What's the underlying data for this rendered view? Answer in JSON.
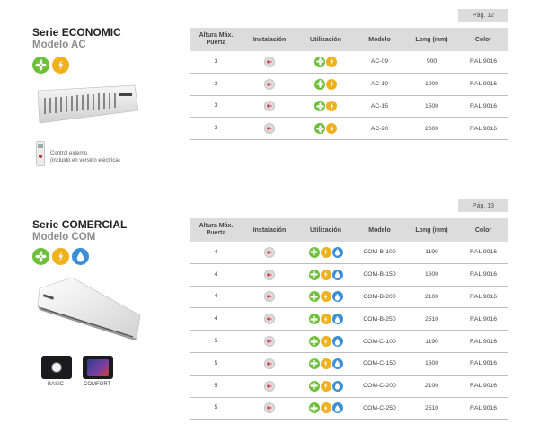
{
  "economic": {
    "page": "Pág. 12",
    "series_label": "Serie ECONOMIC",
    "model_label": "Modelo AC",
    "icons": [
      "fan-icon",
      "heat-icon"
    ],
    "remote_caption_line1": "Control externo",
    "remote_caption_line2": "(incluido en versión eléctrica)",
    "headers": {
      "height_line1": "Altura Máx.",
      "height_line2": "Puerta",
      "install": "Instalación",
      "use": "Utilización",
      "model": "Modelo",
      "length": "Long (mm)",
      "color": "Color"
    },
    "rows": [
      {
        "height": "3",
        "model": "AC-09",
        "length": "900",
        "color": "RAL 9016"
      },
      {
        "height": "3",
        "model": "AC-10",
        "length": "1000",
        "color": "RAL 9016"
      },
      {
        "height": "3",
        "model": "AC-15",
        "length": "1500",
        "color": "RAL 9016"
      },
      {
        "height": "3",
        "model": "AC-20",
        "length": "2000",
        "color": "RAL 9016"
      }
    ]
  },
  "comercial": {
    "page": "Pág. 13",
    "series_label": "Serie COMERCIAL",
    "model_label": "Modelo COM",
    "icons": [
      "fan-icon",
      "heat-icon",
      "water-icon"
    ],
    "controller_basic": "BASIC",
    "controller_comfort": "COMFORT",
    "headers": {
      "height_line1": "Altura Máx.",
      "height_line2": "Puerta",
      "install": "Instalación",
      "use": "Utilización",
      "model": "Modelo",
      "length": "Long (mm)",
      "color": "Color"
    },
    "rows": [
      {
        "height": "4",
        "model": "COM-B-100",
        "length": "1190",
        "color": "RAL 9016"
      },
      {
        "height": "4",
        "model": "COM-B-150",
        "length": "1600",
        "color": "RAL 9016"
      },
      {
        "height": "4",
        "model": "COM-B-200",
        "length": "2100",
        "color": "RAL 9016"
      },
      {
        "height": "4",
        "model": "COM-B-250",
        "length": "2510",
        "color": "RAL 9016"
      },
      {
        "height": "5",
        "model": "COM-C-100",
        "length": "1190",
        "color": "RAL 9016"
      },
      {
        "height": "5",
        "model": "COM-C-150",
        "length": "1600",
        "color": "RAL 9016"
      },
      {
        "height": "5",
        "model": "COM-C-200",
        "length": "2100",
        "color": "RAL 9016"
      },
      {
        "height": "5",
        "model": "COM-C-250",
        "length": "2510",
        "color": "RAL 9016"
      }
    ]
  },
  "colors": {
    "fan": "#6ebf3a",
    "heat": "#f0b21c",
    "water": "#3b8fd6",
    "install_arrow": "#d63a4a",
    "header_bg": "#dcdcdc"
  }
}
